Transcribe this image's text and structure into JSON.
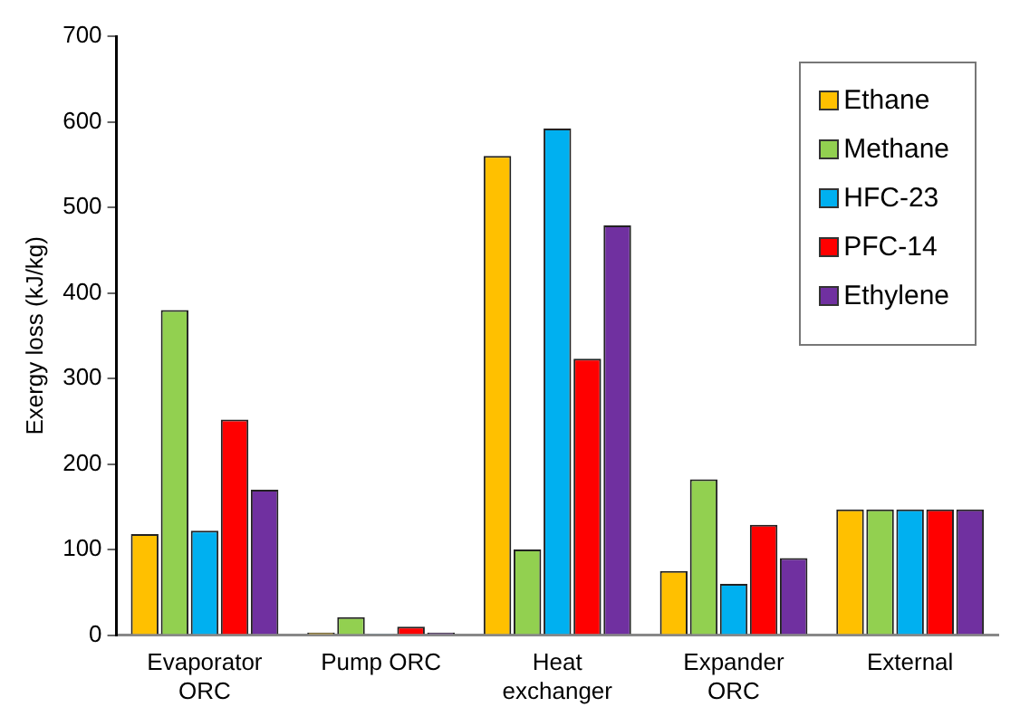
{
  "chart_data": {
    "type": "bar",
    "ylabel": "Exergy loss (kJ/kg)",
    "categories": [
      "Evaporator\nORC",
      "Pump ORC",
      "Heat\nexchanger",
      "Expander\nORC",
      "External"
    ],
    "series": [
      {
        "name": "Ethane",
        "color": "#ffc000",
        "values": [
          118,
          3,
          560,
          75,
          147
        ]
      },
      {
        "name": "Methane",
        "color": "#92d050",
        "values": [
          380,
          21,
          100,
          182,
          147
        ]
      },
      {
        "name": "HFC-23",
        "color": "#00b0f0",
        "values": [
          122,
          1,
          592,
          60,
          147
        ]
      },
      {
        "name": "PFC-14",
        "color": "#ff0000",
        "values": [
          252,
          10,
          323,
          129,
          147
        ]
      },
      {
        "name": "Ethylene",
        "color": "#7030a0",
        "values": [
          170,
          3,
          479,
          90,
          147
        ]
      }
    ],
    "ylim": [
      0,
      700
    ],
    "yticks": [
      0,
      100,
      200,
      300,
      400,
      500,
      600,
      700
    ],
    "grid": false,
    "legend": "top right"
  }
}
